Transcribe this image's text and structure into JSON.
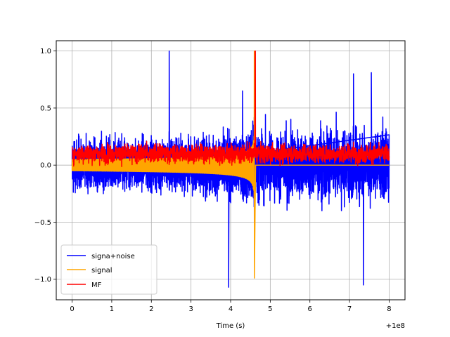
{
  "chart_data": {
    "type": "line",
    "xlabel": "Time (s)",
    "x_offset_label": "+1e8",
    "x_tick_labels": [
      "0",
      "1",
      "2",
      "3",
      "4",
      "5",
      "6",
      "7",
      "8"
    ],
    "y_tick_labels": [
      "−1.0",
      "−0.5",
      "0.0",
      "0.5",
      "1.0"
    ],
    "xlim": [
      -0.4,
      8.4
    ],
    "ylim": [
      -1.18,
      1.09
    ],
    "x_ticks": [
      0,
      1,
      2,
      3,
      4,
      5,
      6,
      7,
      8
    ],
    "y_ticks": [
      -1.0,
      -0.5,
      0.0,
      0.5,
      1.0
    ],
    "grid": true,
    "legend_position": "lower-left",
    "series": [
      {
        "name": "signa+noise",
        "color": "#0000ff",
        "description_values": {
          "x_start": 0,
          "x_end": 8,
          "typical_range": [
            -0.45,
            0.5
          ],
          "peaks": [
            {
              "x": 2.45,
              "y": 1.0
            },
            {
              "x": 4.3,
              "y": 0.65
            },
            {
              "x": 3.95,
              "y": -1.07
            },
            {
              "x": 7.35,
              "y": -1.05
            },
            {
              "x": 7.55,
              "y": 0.81
            },
            {
              "x": 7.1,
              "y": 0.8
            }
          ]
        }
      },
      {
        "name": "signal",
        "color": "#ffa500",
        "description_values": {
          "x_start": 0,
          "x_end": 4.6,
          "envelope_start": 0.05,
          "envelope_end": 1.0,
          "min_at_end": -0.99,
          "zero_after": 4.6
        }
      },
      {
        "name": "MF",
        "color": "#ff0000",
        "description_values": {
          "x_start": 0,
          "x_end": 8,
          "baseline_range": [
            0.0,
            0.2
          ],
          "peak": {
            "x": 4.62,
            "y": 1.0
          }
        }
      }
    ]
  }
}
